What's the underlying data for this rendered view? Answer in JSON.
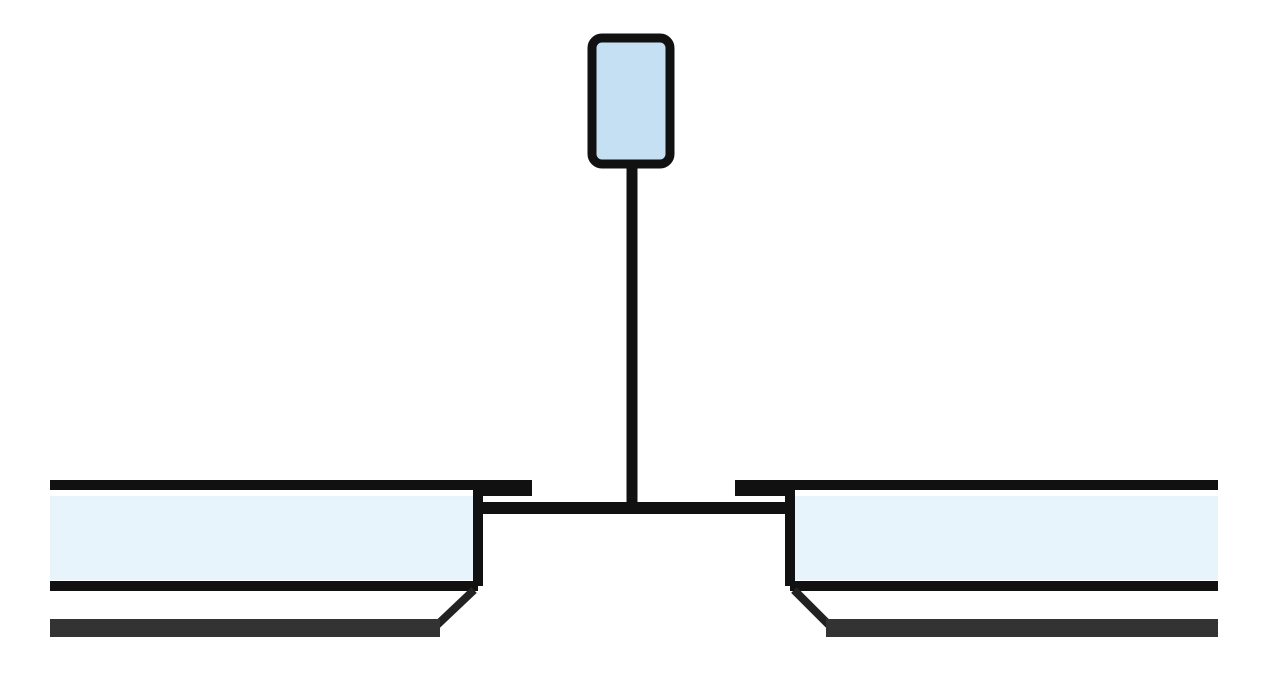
{
  "diagram": {
    "colors": {
      "background": "#ffffff",
      "stroke": "#111111",
      "bottom_stroke": "#333333",
      "hanger_fill": "#c4e0f2",
      "tile_fill": "#e8f4fb"
    },
    "parts": [
      {
        "id": "hanger-anchor",
        "shape": "rounded-rect"
      },
      {
        "id": "suspension-rod",
        "shape": "line"
      },
      {
        "id": "tee-grid-flange",
        "shape": "line"
      },
      {
        "id": "left-ceiling-tile",
        "shape": "panel"
      },
      {
        "id": "right-ceiling-tile",
        "shape": "panel"
      }
    ]
  }
}
